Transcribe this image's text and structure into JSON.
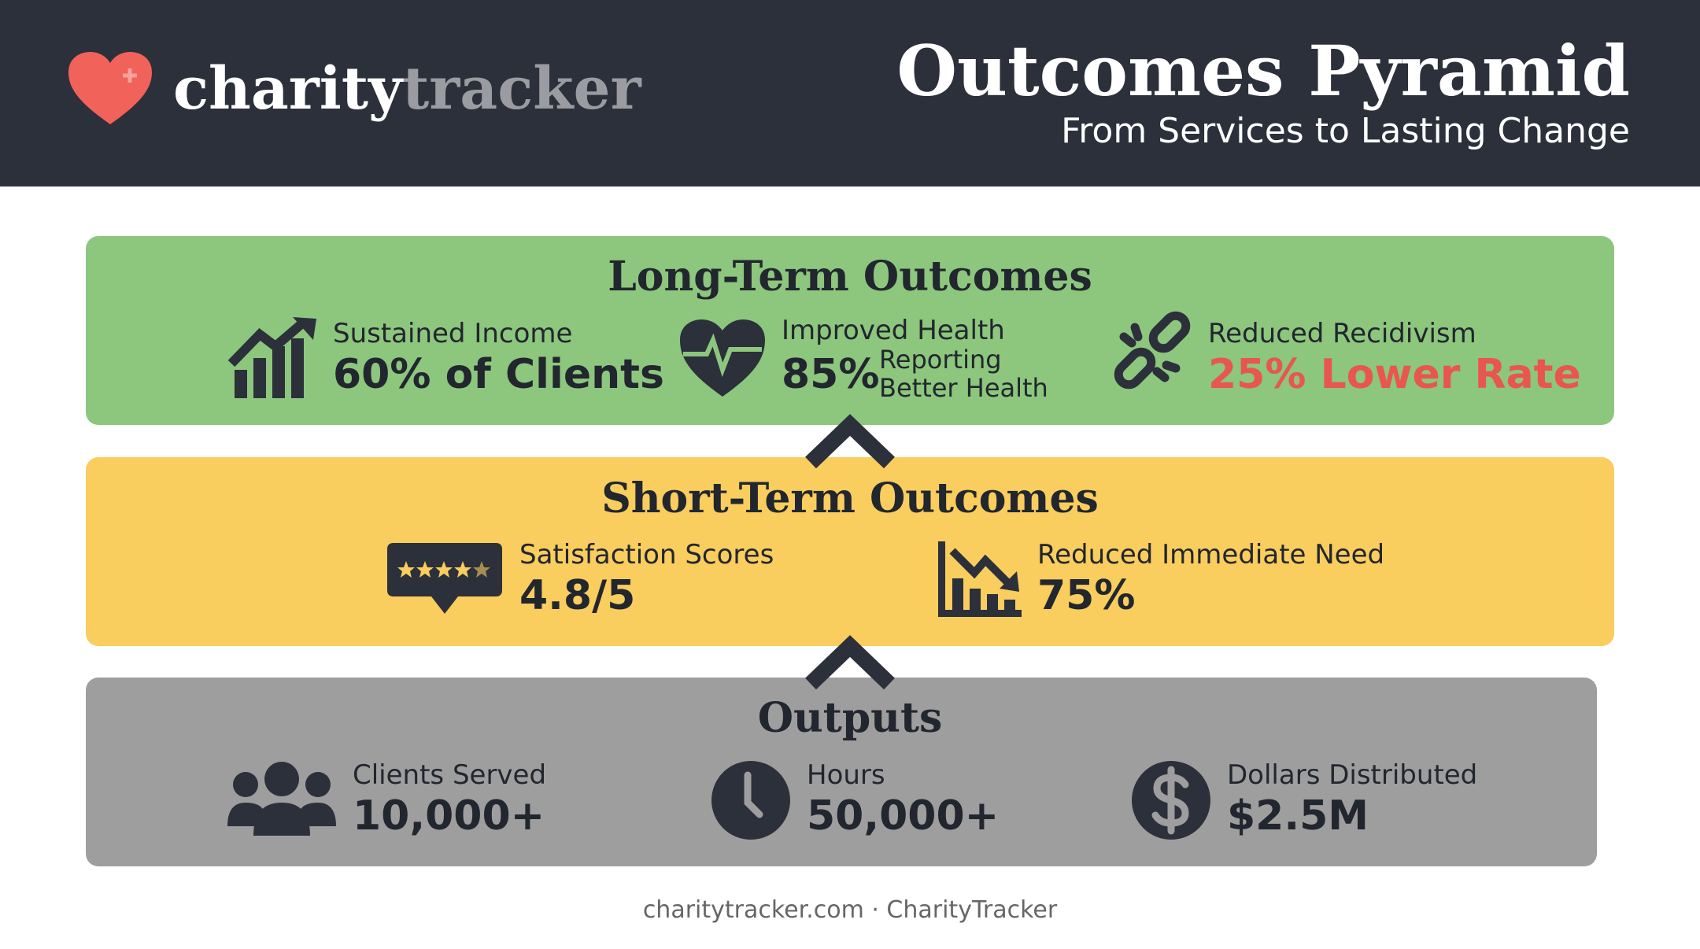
{
  "header": {
    "logo": {
      "part1": "charity",
      "part2": "tracker"
    },
    "title": "Outcomes Pyramid",
    "subtitle": "From Services to Lasting Change"
  },
  "tiers": [
    {
      "title": "Long-Term Outcomes",
      "items": [
        {
          "label": "Sustained Income",
          "value": "60% of Clients"
        },
        {
          "label": "Improved Health",
          "value": "85%",
          "detail": [
            "Reporting",
            "Better Health"
          ]
        },
        {
          "label": "Reduced Recidivism",
          "value": "25% Lower Rate"
        }
      ]
    },
    {
      "title": "Short-Term Outcomes",
      "items": [
        {
          "label": "Satisfaction Scores",
          "value": "4.8/5"
        },
        {
          "label": "Reduced Immediate Need",
          "value": "75%"
        }
      ]
    },
    {
      "title": "Outputs",
      "items": [
        {
          "label": "Clients Served",
          "value": "10,000+"
        },
        {
          "label": "Hours",
          "value": "50,000+"
        },
        {
          "label": "Dollars Distributed",
          "value": "$2.5M"
        }
      ]
    }
  ],
  "footer": "charitytracker.com · CharityTracker"
}
